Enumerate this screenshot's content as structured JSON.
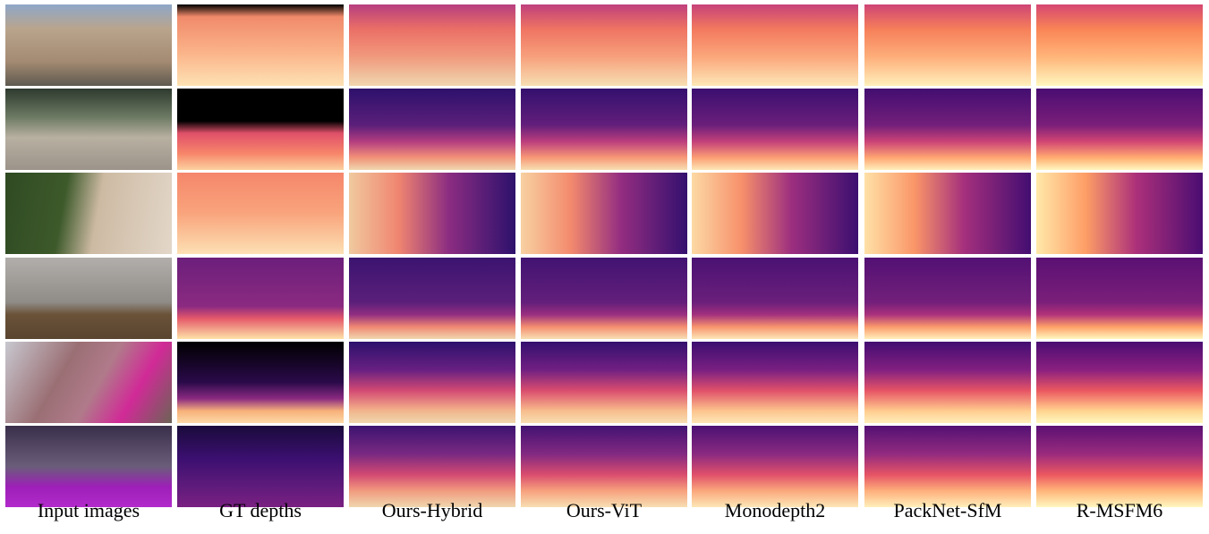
{
  "columns": [
    "Input images",
    "GT depths",
    "Ours-Hybrid",
    "Ours-ViT",
    "Monodepth2",
    "PackNet-SfM",
    "R-MSFM6"
  ]
}
